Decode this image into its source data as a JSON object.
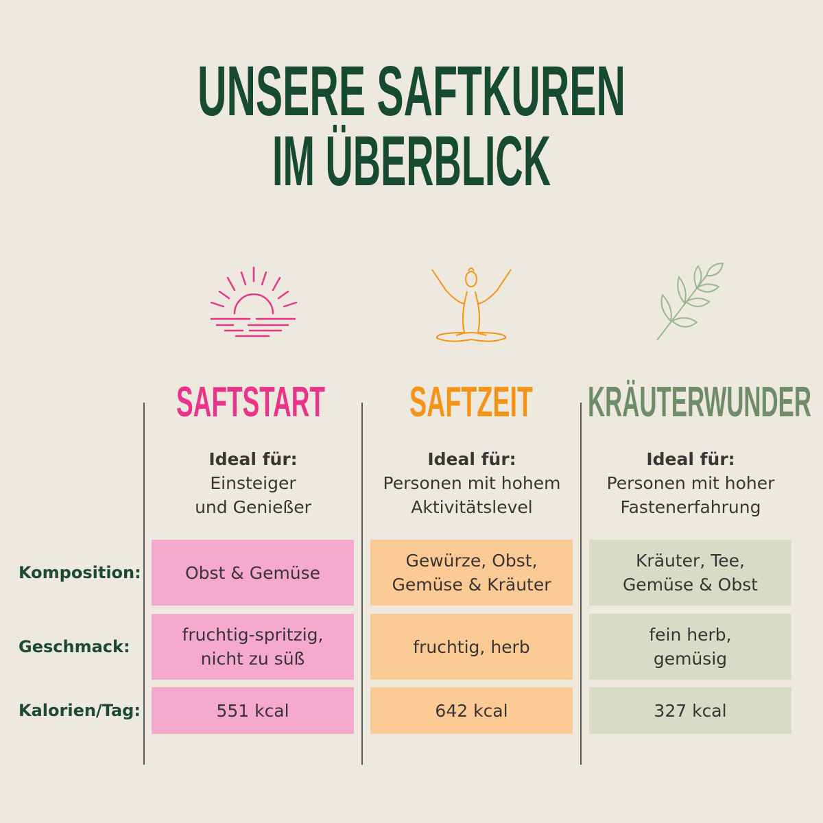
{
  "title": {
    "line1": "UNSERE SAFTKUREN",
    "line2": "IM ÜBERBLICK"
  },
  "colors": {
    "title": "#174a33",
    "saftstart": "#e8358a",
    "saftzeit": "#f39419",
    "kraeuterwunder": "#6e8c68",
    "saftstart_cell": "#f4a9cd",
    "saftzeit_cell": "#fccb95",
    "kraeuterwunder_cell": "#d6dcc6"
  },
  "row_labels": [
    "Komposition:",
    "Geschmack:",
    "Kalorien/Tag:"
  ],
  "products": [
    {
      "name": "SAFTSTART",
      "icon": "sunrise-icon",
      "ideal_label": "Ideal für:",
      "ideal_lines": [
        "Einsteiger",
        "und Genießer"
      ],
      "komposition": [
        "Obst & Gemüse"
      ],
      "geschmack": [
        "fruchtig-spritzig,",
        "nicht zu süß"
      ],
      "kalorien": "551 kcal"
    },
    {
      "name": "SAFTZEIT",
      "icon": "yoga-icon",
      "ideal_label": "Ideal für:",
      "ideal_lines": [
        "Personen mit hohem",
        "Aktivitätslevel"
      ],
      "komposition": [
        "Gewürze, Obst,",
        "Gemüse & Kräuter"
      ],
      "geschmack": [
        "fruchtig, herb"
      ],
      "kalorien": "642 kcal"
    },
    {
      "name": "KRÄUTERWUNDER",
      "icon": "leaf-branch-icon",
      "ideal_label": "Ideal für:",
      "ideal_lines": [
        "Personen mit hoher",
        "Fastenerfahrung"
      ],
      "komposition": [
        "Kräuter, Tee,",
        "Gemüse & Obst"
      ],
      "geschmack": [
        "fein herb,",
        "gemüsig"
      ],
      "kalorien": "327 kcal"
    }
  ]
}
